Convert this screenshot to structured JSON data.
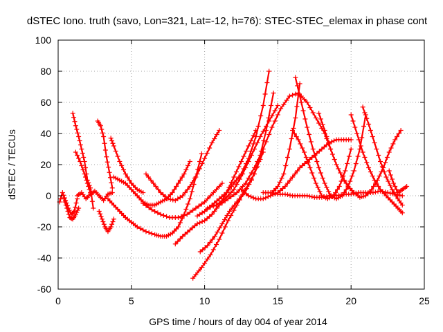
{
  "chart_data": {
    "type": "scatter",
    "title": "dSTEC Iono. truth (savo, Lon=321, Lat=-12, h=76): STEC-STEC_elemax in phase cont",
    "xlabel": "GPS time / hours of day 004 of year 2014",
    "ylabel": "dSTEC  / TECUs",
    "xlim": [
      0,
      25
    ],
    "ylim": [
      -60,
      100
    ],
    "xticks": [
      0,
      5,
      10,
      15,
      20,
      25
    ],
    "yticks": [
      -60,
      -40,
      -20,
      0,
      20,
      40,
      60,
      80,
      100
    ],
    "grid": true,
    "legend": "none",
    "marker": "plus",
    "color": "#ff0000",
    "series": [
      {
        "x": [
          0.1,
          0.3,
          0.5,
          0.7,
          0.9,
          1.1,
          1.3
        ],
        "y": [
          -4,
          2,
          -3,
          -8,
          -12,
          -10,
          -2
        ]
      },
      {
        "x": [
          0.4,
          0.6,
          0.8,
          1.0,
          1.2,
          1.4
        ],
        "y": [
          -2,
          -8,
          -14,
          -15,
          -12,
          -8
        ]
      },
      {
        "x": [
          1.0,
          1.2,
          1.4,
          1.6,
          1.8,
          2.0,
          2.2,
          2.4
        ],
        "y": [
          53,
          45,
          38,
          30,
          22,
          10,
          5,
          -8
        ]
      },
      {
        "x": [
          1.2,
          1.5,
          1.8,
          2.0,
          2.2
        ],
        "y": [
          28,
          22,
          14,
          8,
          2
        ]
      },
      {
        "x": [
          1.3,
          1.6,
          1.9,
          2.2,
          2.5,
          2.8,
          3.1,
          3.4,
          3.7
        ],
        "y": [
          0,
          2,
          -2,
          1,
          3,
          0,
          -3,
          1,
          2
        ]
      },
      {
        "x": [
          2.7,
          2.9,
          3.1,
          3.3,
          3.5,
          3.7
        ],
        "y": [
          48,
          45,
          38,
          25,
          15,
          5
        ]
      },
      {
        "x": [
          2.8,
          3.0,
          3.2,
          3.4,
          3.6,
          3.8
        ],
        "y": [
          -10,
          -15,
          -20,
          -23,
          -20,
          -15
        ]
      },
      {
        "x": [
          3.6,
          3.8,
          4.2,
          4.6,
          5.0,
          5.4,
          5.8
        ],
        "y": [
          37,
          32,
          22,
          14,
          8,
          4,
          2
        ]
      },
      {
        "x": [
          3.4,
          3.8,
          4.2,
          4.6,
          5.0,
          5.4,
          6.0,
          6.6,
          7.0,
          7.4,
          7.8,
          8.2,
          8.6,
          9.0,
          9.4,
          9.8
        ],
        "y": [
          -2,
          -6,
          -10,
          -14,
          -17,
          -20,
          -23,
          -25,
          -26,
          -26,
          -24,
          -20,
          -12,
          -2,
          12,
          27
        ]
      },
      {
        "x": [
          3.8,
          4.2,
          4.6,
          5.0,
          5.4,
          5.8,
          6.2,
          6.6,
          7.0,
          7.4,
          7.8,
          8.2,
          8.6,
          9.0
        ],
        "y": [
          12,
          10,
          8,
          4,
          0,
          -4,
          -6,
          -6,
          -4,
          -2,
          2,
          8,
          14,
          22
        ]
      },
      {
        "x": [
          6.0,
          6.5,
          7.0,
          7.5,
          8.0,
          8.5,
          9.0,
          9.5,
          10.0,
          10.5,
          11.0
        ],
        "y": [
          14,
          8,
          2,
          -2,
          -3,
          0,
          6,
          14,
          24,
          34,
          42
        ]
      },
      {
        "x": [
          5.8,
          6.4,
          7.0,
          7.6,
          8.2,
          8.8,
          9.4,
          10.0,
          10.6,
          11.2
        ],
        "y": [
          -5,
          -9,
          -12,
          -14,
          -14,
          -12,
          -8,
          -4,
          2,
          8
        ]
      },
      {
        "x": [
          8.0,
          8.5,
          9.0,
          9.5,
          10.0,
          10.5,
          11.0,
          11.5,
          12.0,
          12.5,
          13.0,
          13.5
        ],
        "y": [
          -31,
          -26,
          -22,
          -18,
          -16,
          -12,
          -6,
          2,
          12,
          22,
          32,
          42
        ]
      },
      {
        "x": [
          9.5,
          10.0,
          10.5,
          11.0,
          11.5,
          12.0,
          12.5,
          13.0,
          13.5,
          14.0,
          14.4
        ],
        "y": [
          -13,
          -10,
          -6,
          -2,
          2,
          8,
          14,
          24,
          38,
          58,
          80
        ]
      },
      {
        "x": [
          9.7,
          10.2,
          10.7,
          11.2,
          11.7,
          12.2,
          12.7,
          13.2,
          13.7,
          14.2,
          14.7
        ],
        "y": [
          -36,
          -32,
          -26,
          -18,
          -10,
          -4,
          2,
          10,
          22,
          42,
          66
        ]
      },
      {
        "x": [
          9.2,
          9.8,
          10.4,
          11.0,
          11.6,
          12.2,
          12.8,
          13.4,
          14.0
        ],
        "y": [
          -53,
          -46,
          -38,
          -28,
          -16,
          -6,
          4,
          14,
          28
        ]
      },
      {
        "x": [
          10.2,
          10.8,
          11.4,
          12.0,
          12.6,
          13.2,
          13.8,
          14.4,
          15.0
        ],
        "y": [
          -8,
          -6,
          -2,
          4,
          14,
          26,
          38,
          48,
          58
        ]
      },
      {
        "x": [
          11.0,
          11.6,
          12.2,
          12.8,
          13.4,
          14.0,
          14.6,
          15.2,
          15.8,
          16.4,
          17.0,
          17.6,
          18.2,
          18.6
        ],
        "y": [
          -6,
          -2,
          2,
          8,
          18,
          30,
          44,
          56,
          64,
          66,
          60,
          50,
          40,
          30
        ]
      },
      {
        "x": [
          12.5,
          13.0,
          13.5,
          14.0,
          14.5,
          15.0,
          15.5,
          16.0,
          16.5,
          17.0,
          17.5,
          18.0,
          18.5,
          19.0,
          19.5,
          20.0
        ],
        "y": [
          4,
          0,
          -2,
          -2,
          0,
          2,
          6,
          12,
          18,
          22,
          26,
          30,
          34,
          36,
          36,
          36
        ]
      },
      {
        "x": [
          14.0,
          14.5,
          15.0,
          15.5,
          16.0,
          16.5,
          17.0,
          17.5,
          18.0,
          18.5,
          19.0,
          19.5,
          20.0,
          20.5,
          21.0,
          21.5,
          22.0,
          22.5,
          23.0,
          23.5
        ],
        "y": [
          2,
          2,
          1,
          1,
          0,
          0,
          0,
          -1,
          -1,
          0,
          0,
          1,
          1,
          2,
          2,
          2,
          3,
          2,
          1,
          0
        ]
      },
      {
        "x": [
          14.6,
          15.0,
          15.4,
          15.8,
          16.2,
          16.5
        ],
        "y": [
          2,
          6,
          14,
          30,
          50,
          72
        ]
      },
      {
        "x": [
          16.0,
          16.4,
          16.8,
          17.2,
          17.6,
          18.0,
          18.4,
          18.8,
          19.2,
          19.6,
          20.0
        ],
        "y": [
          42,
          36,
          28,
          18,
          8,
          0,
          -2,
          0,
          6,
          16,
          30
        ]
      },
      {
        "x": [
          16.2,
          16.6,
          17.0,
          17.4,
          17.8,
          18.2,
          18.6,
          19.0,
          19.4,
          19.8,
          20.2,
          20.6,
          21.0
        ],
        "y": [
          76,
          60,
          44,
          30,
          18,
          8,
          0,
          -2,
          0,
          6,
          16,
          30,
          52
        ]
      },
      {
        "x": [
          17.8,
          18.2,
          18.6,
          19.0,
          19.4,
          19.8,
          20.2,
          20.6,
          21.0,
          21.4,
          21.8,
          22.2,
          22.6,
          23.0,
          23.4
        ],
        "y": [
          53,
          42,
          30,
          20,
          12,
          6,
          2,
          -1,
          0,
          4,
          10,
          18,
          28,
          36,
          42
        ]
      },
      {
        "x": [
          20.0,
          20.4,
          20.8,
          21.2,
          21.6,
          22.0,
          22.4,
          22.8,
          23.2,
          23.5
        ],
        "y": [
          52,
          40,
          28,
          18,
          10,
          4,
          0,
          -4,
          -8,
          -11
        ]
      },
      {
        "x": [
          20.8,
          21.2,
          21.6,
          22.0,
          22.4,
          22.8,
          23.2,
          23.5
        ],
        "y": [
          57,
          46,
          34,
          22,
          12,
          4,
          -2,
          -6
        ]
      },
      {
        "x": [
          22.6,
          22.9,
          23.2,
          23.5,
          23.8
        ],
        "y": [
          16,
          8,
          2,
          4,
          6
        ]
      }
    ]
  }
}
